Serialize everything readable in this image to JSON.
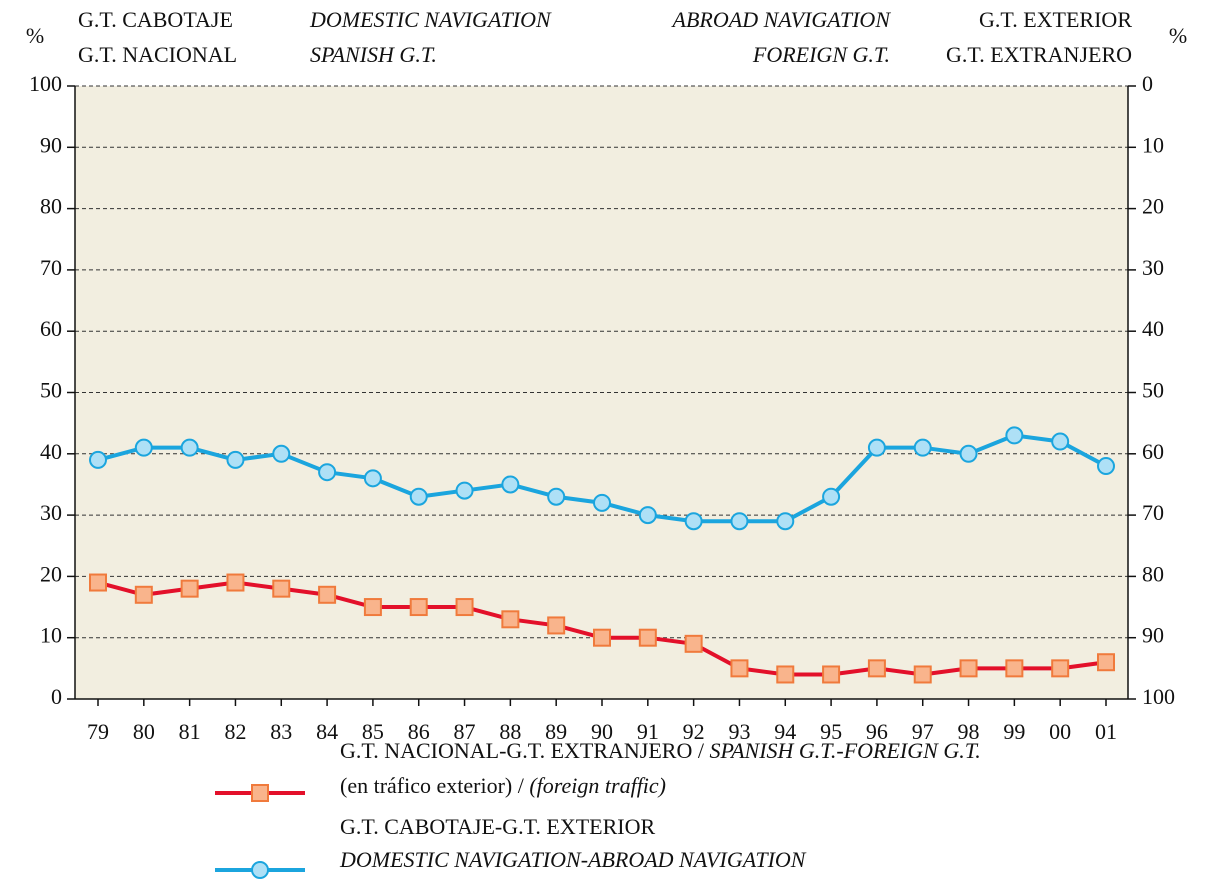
{
  "chart_data": {
    "type": "line",
    "header": [
      {
        "text": "%",
        "italic": false
      },
      {
        "text": "G.T. CABOTAJE",
        "italic": false
      },
      {
        "text": "G.T. NACIONAL",
        "italic": false
      },
      {
        "text": "DOMESTIC NAVIGATION",
        "italic": true
      },
      {
        "text": "SPANISH G.T.",
        "italic": true
      },
      {
        "text": "ABROAD NAVIGATION",
        "italic": true
      },
      {
        "text": "FOREIGN G.T.",
        "italic": true
      },
      {
        "text": "G.T. EXTERIOR",
        "italic": false
      },
      {
        "text": "G.T. EXTRANJERO",
        "italic": false
      },
      {
        "text": "%",
        "italic": false
      }
    ],
    "categories": [
      "79",
      "80",
      "81",
      "82",
      "83",
      "84",
      "85",
      "86",
      "87",
      "88",
      "89",
      "90",
      "91",
      "92",
      "93",
      "94",
      "95",
      "96",
      "97",
      "98",
      "99",
      "00",
      "01"
    ],
    "series": [
      {
        "name": [
          [
            {
              "text": "G.T. NACIONAL-G.T. EXTRANJERO / ",
              "italic": false
            },
            {
              "text": "SPANISH G.T.-FOREIGN G.T.",
              "italic": true
            }
          ],
          [
            {
              "text": "(en tráfico exterior) / ",
              "italic": false
            },
            {
              "text": "(foreign traffic)",
              "italic": true
            }
          ]
        ],
        "color": "#e3102a",
        "marker": "square",
        "marker_fill": "#f9b48c",
        "marker_edge": "#f07a3c",
        "values": [
          19,
          17,
          18,
          19,
          18,
          17,
          15,
          15,
          15,
          13,
          12,
          10,
          10,
          9,
          5,
          4,
          4,
          5,
          4,
          5,
          5,
          5,
          6
        ]
      },
      {
        "name": [
          [
            {
              "text": "G.T. CABOTAJE-G.T. EXTERIOR",
              "italic": false
            }
          ],
          [
            {
              "text": "DOMESTIC NAVIGATION-ABROAD NAVIGATION",
              "italic": true
            }
          ]
        ],
        "color": "#1ba5de",
        "marker": "circle",
        "marker_fill": "#aee0f6",
        "marker_edge": "#1ba5de",
        "values": [
          39,
          41,
          41,
          39,
          40,
          37,
          36,
          33,
          34,
          35,
          33,
          32,
          30,
          29,
          29,
          29,
          33,
          41,
          41,
          40,
          43,
          42,
          38
        ]
      }
    ],
    "ylim": [
      0,
      100
    ],
    "yticks": [
      0,
      10,
      20,
      30,
      40,
      50,
      60,
      70,
      80,
      90,
      100
    ],
    "y2lim": [
      100,
      0
    ],
    "y2ticks": [
      0,
      10,
      20,
      30,
      40,
      50,
      60,
      70,
      80,
      90,
      100
    ],
    "grid": true,
    "plot_background": "#f2eee0"
  }
}
